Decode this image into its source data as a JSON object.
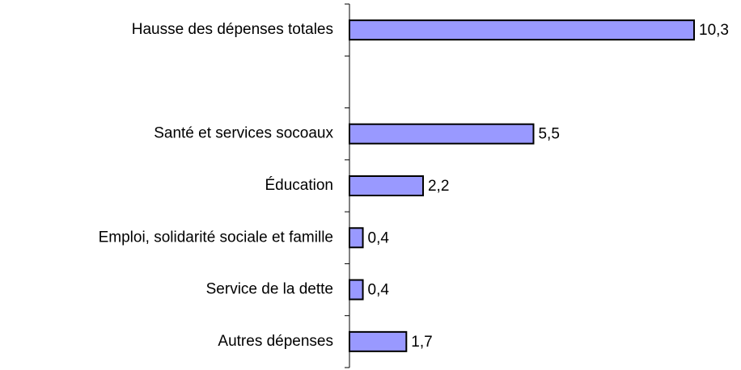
{
  "chart_data": {
    "type": "hbar",
    "categories": [
      "Hausse des dépenses totales",
      null,
      "Santé et services socoaux",
      "Éducation",
      "Emploi, solidarité sociale et famille",
      "Service de la dette",
      "Autres dépenses"
    ],
    "values": [
      10.3,
      null,
      5.5,
      2.2,
      0.4,
      0.4,
      1.7
    ],
    "value_labels": [
      "10,3",
      null,
      "5,5",
      "2,2",
      "0,4",
      "0,4",
      "1,7"
    ],
    "color": "#9999ff"
  }
}
